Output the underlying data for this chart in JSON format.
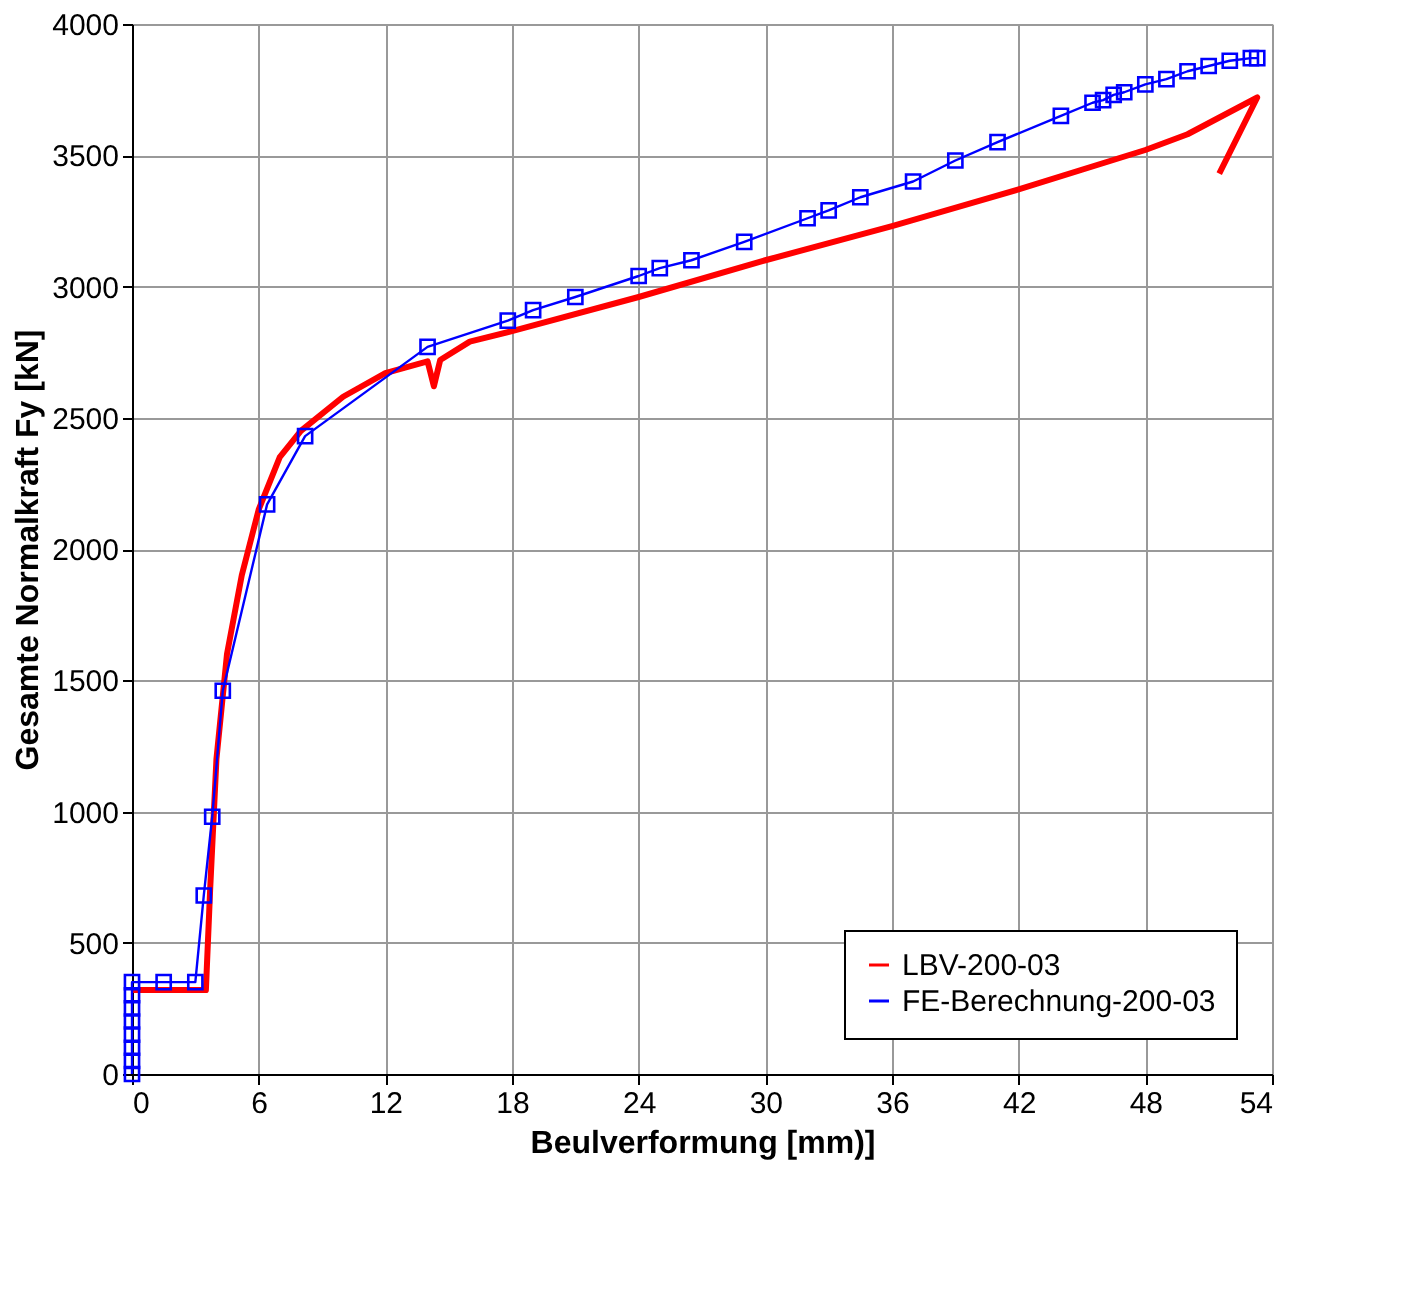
{
  "chart_data": {
    "type": "line",
    "xlabel": "Beulverformung [mm)]",
    "ylabel": "Gesamte Normalkraft  Fy [kN]",
    "xlim": [
      0,
      54
    ],
    "xticks": [
      0,
      6,
      12,
      18,
      24,
      30,
      36,
      42,
      48,
      54
    ],
    "ylim": [
      0,
      4000
    ],
    "yticks": [
      0,
      500,
      1000,
      1500,
      2000,
      2500,
      3000,
      3500,
      4000
    ],
    "grid": true,
    "legend": "bottom right",
    "series": [
      {
        "name": "LBV-200-03",
        "color": "#ff0000",
        "marker": "none",
        "x": [
          0,
          2,
          3.5,
          3.7,
          4.0,
          4.5,
          5.2,
          6,
          7,
          8,
          10,
          12,
          14,
          14.3,
          14.6,
          16,
          18,
          24,
          30,
          36,
          42,
          48,
          50,
          53.3,
          51.5
        ],
        "values": [
          320,
          320,
          320,
          700,
          1200,
          1600,
          1900,
          2150,
          2350,
          2450,
          2580,
          2670,
          2715,
          2620,
          2720,
          2790,
          2830,
          2960,
          3100,
          3230,
          3370,
          3520,
          3580,
          3720,
          3430
        ]
      },
      {
        "name": "FE-Berechnung-200-03",
        "color": "#0000ff",
        "marker": "square",
        "x": [
          0,
          0,
          0,
          0,
          0,
          0,
          0,
          0,
          1.5,
          3,
          3.4,
          3.8,
          4.3,
          6.4,
          8.2,
          14,
          17.8,
          19,
          21,
          24,
          25,
          26.5,
          29,
          32,
          33,
          34.5,
          37,
          39,
          41,
          44,
          45.5,
          46,
          46.5,
          47,
          48,
          49,
          50,
          51,
          52,
          53,
          53.3
        ],
        "values": [
          0,
          50,
          100,
          150,
          200,
          250,
          300,
          350,
          350,
          350,
          680,
          980,
          1460,
          2170,
          2430,
          2770,
          2870,
          2910,
          2960,
          3040,
          3070,
          3100,
          3170,
          3260,
          3290,
          3340,
          3400,
          3480,
          3550,
          3650,
          3700,
          3710,
          3730,
          3740,
          3770,
          3790,
          3820,
          3840,
          3860,
          3870,
          3870
        ]
      }
    ]
  }
}
